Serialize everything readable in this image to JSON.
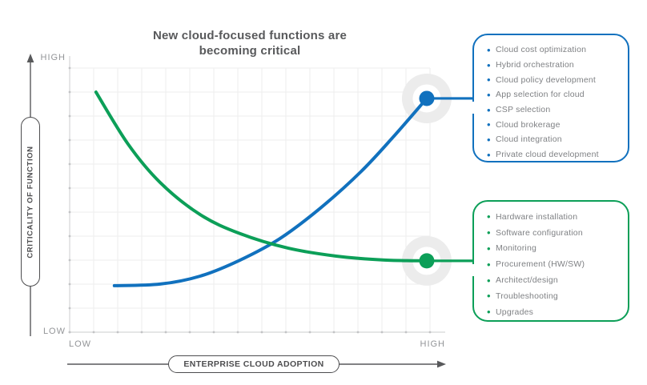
{
  "title": "New cloud-focused functions are\nbecoming critical",
  "y_axis": {
    "label": "CRITICALITY OF FUNCTION",
    "top_label": "HIGH",
    "bottom_label": "LOW"
  },
  "x_axis": {
    "label": "ENTERPRISE CLOUD ADOPTION",
    "left_label": "LOW",
    "right_label": "HIGH"
  },
  "colors": {
    "blue": "#1171be",
    "green": "#0c9f58",
    "halo_gray": "#ececec",
    "grid": "#ededee",
    "axis_line": "#d5d6d7",
    "tick": "#c2c3c5",
    "list_text": "#7f8184",
    "title_text": "#58595b"
  },
  "callouts": {
    "blue": {
      "items": [
        "Cloud cost optimization",
        "Hybrid orchestration",
        "Cloud policy development",
        "App selection for cloud",
        "CSP selection",
        "Cloud brokerage",
        "Cloud integration",
        "Private cloud development"
      ]
    },
    "green": {
      "items": [
        "Hardware installation",
        "Software configuration",
        "Monitoring",
        "Procurement (HW/SW)",
        "Architect/design",
        "Troubleshooting",
        "Upgrades"
      ]
    }
  },
  "chart_data": {
    "type": "line",
    "title": "New cloud-focused functions are becoming critical",
    "xlabel": "ENTERPRISE CLOUD ADOPTION",
    "ylabel": "CRITICALITY OF FUNCTION",
    "x_range": [
      "LOW",
      "HIGH"
    ],
    "y_range": [
      "LOW",
      "HIGH"
    ],
    "grid": true,
    "note": "Qualitative axes; point coordinates normalized 0-1 (LOW=0, HIGH=1)",
    "series": [
      {
        "id": "blue",
        "color": "#1171be",
        "shape": "rising exponential",
        "endpoint_marker": true,
        "callout_items_key": "callouts.blue",
        "points": [
          [
            0.124,
            0.176
          ],
          [
            0.251,
            0.182
          ],
          [
            0.362,
            0.212
          ],
          [
            0.473,
            0.273
          ],
          [
            0.584,
            0.355
          ],
          [
            0.696,
            0.47
          ],
          [
            0.807,
            0.606
          ],
          [
            0.896,
            0.736
          ],
          [
            0.991,
            0.885
          ]
        ]
      },
      {
        "id": "green",
        "color": "#0c9f58",
        "shape": "decaying exponential",
        "endpoint_marker": true,
        "callout_items_key": "callouts.green",
        "points": [
          [
            0.073,
            0.909
          ],
          [
            0.162,
            0.712
          ],
          [
            0.251,
            0.567
          ],
          [
            0.362,
            0.445
          ],
          [
            0.473,
            0.373
          ],
          [
            0.607,
            0.318
          ],
          [
            0.74,
            0.288
          ],
          [
            0.873,
            0.273
          ],
          [
            0.991,
            0.27
          ]
        ]
      }
    ]
  }
}
